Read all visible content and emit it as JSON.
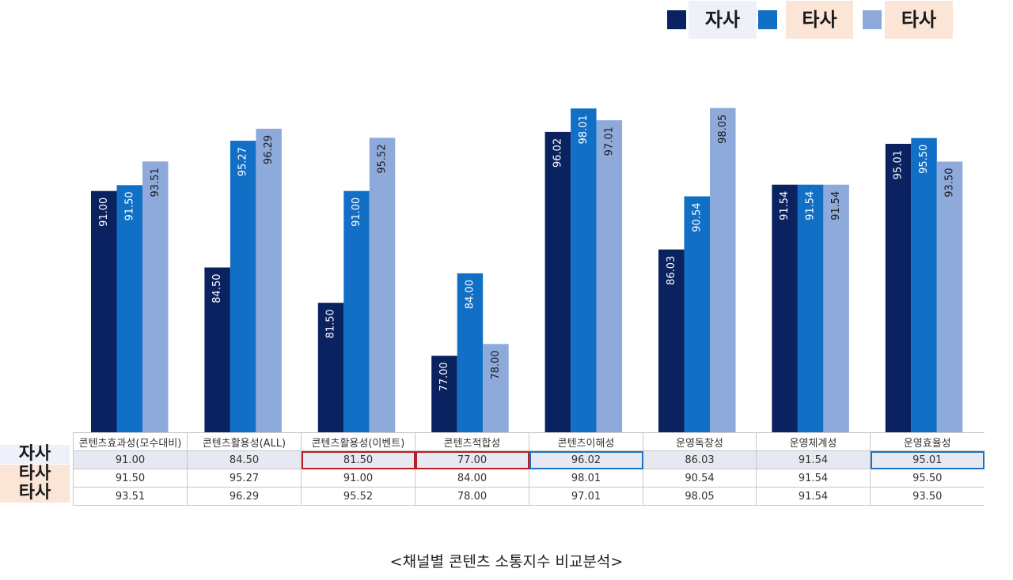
{
  "chart_data": {
    "type": "bar",
    "categories": [
      "콘텐츠효과성(모수대비)",
      "콘텐츠활용성(ALL)",
      "콘텐츠활용성(이벤트)",
      "콘텐츠적합성",
      "콘텐츠이해성",
      "운영독창성",
      "운영체계성",
      "운영효율성"
    ],
    "series": [
      {
        "name": "자사",
        "color": "#0b2260",
        "values": [
          91.0,
          84.5,
          81.5,
          77.0,
          96.02,
          86.03,
          91.54,
          95.01
        ]
      },
      {
        "name": "타사",
        "color": "#1170c6",
        "values": [
          91.5,
          95.27,
          91.0,
          84.0,
          98.01,
          90.54,
          91.54,
          95.5
        ]
      },
      {
        "name": "타사",
        "color": "#8eaadb",
        "values": [
          93.51,
          96.29,
          95.52,
          78.0,
          97.01,
          98.05,
          91.54,
          93.5
        ]
      }
    ],
    "ylim": [
      70.5,
      98.5
    ],
    "grid": false,
    "legend_position": "top-right",
    "title": "",
    "xlabel": "",
    "ylabel": ""
  },
  "legend": {
    "label_bgs": [
      "#eef1f9",
      "#fbe5d6",
      "#fbe5d6"
    ]
  },
  "table": {
    "highlight_red": [
      2,
      3
    ],
    "highlight_blue": [
      4,
      7
    ]
  },
  "caption": "<채널별 콘텐츠 소통지수 비교분석>"
}
